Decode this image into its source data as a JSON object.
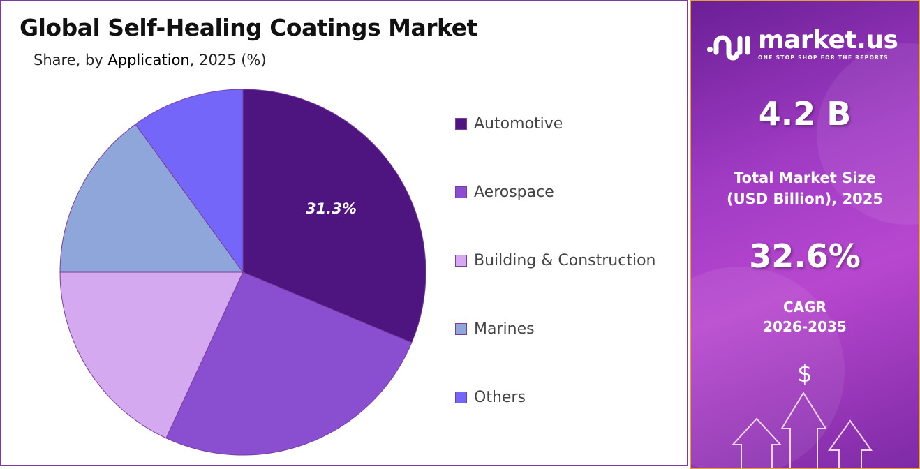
{
  "header": {
    "title": "Global Self-Healing Coatings Market",
    "subtitle_prefix": "Share, by ",
    "subtitle_key": "Application",
    "subtitle_suffix": ", 2025 (%)"
  },
  "chart_data": {
    "type": "pie",
    "title": "Global Self-Healing Coatings Market",
    "subtitle": "Share, by Application, 2025 (%)",
    "categories": [
      "Automotive",
      "Aerospace",
      "Building & Construction",
      "Marines",
      "Others"
    ],
    "values": [
      31.3,
      25.6,
      18.1,
      15.0,
      10.0
    ],
    "colors": [
      "#4e1580",
      "#8a4fd1",
      "#d5a9ef",
      "#8fa6da",
      "#7366f8"
    ],
    "data_labels": [
      "31.3%",
      "",
      "",
      "",
      ""
    ],
    "start_angle": "top, clockwise",
    "legend_position": "right"
  },
  "side_panel": {
    "brand": "market.us",
    "tagline": "ONE STOP SHOP FOR THE REPORTS",
    "market_size": "4.2 B",
    "market_size_label_1": "Total Market Size",
    "market_size_label_2": "(USD Billion), 2025",
    "cagr": "32.6%",
    "cagr_label_1": "CAGR",
    "cagr_label_2": "2026-2035",
    "currency_symbol": "$"
  }
}
